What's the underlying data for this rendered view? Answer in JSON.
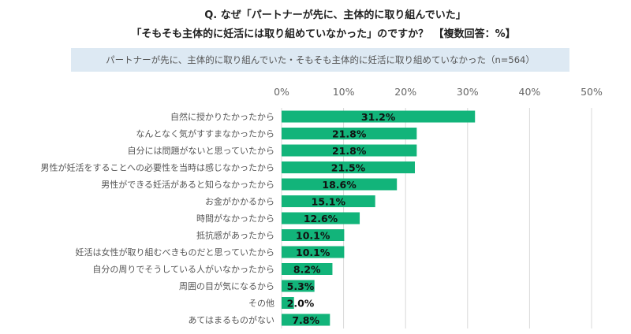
{
  "title_line1": "Q. なぜ「パートナーが先に、主体的に取り組んでいた」",
  "title_line2": "「そもそも主体的に妊活には取り組めていなかった」のですか？　【複数回答：%】",
  "subtitle": "パートナーが先に、主体的に取り組んでいた・そもそも主体的に妊活に取り組めていなかった（n=564）",
  "colors": {
    "bar": "#12b47a",
    "grid": "#d9d9d9",
    "subtitle_bg": "#dde9f3"
  },
  "chart_data": {
    "type": "bar",
    "orientation": "horizontal",
    "title": "Q. なぜ「パートナーが先に、主体的に取り組んでいた」「そもそも主体的に妊活には取り組めていなかった」のですか？ 【複数回答：%】",
    "subtitle": "パートナーが先に、主体的に取り組んでいた・そもそも主体的に妊活に取り組めていなかった（n=564）",
    "xlabel": "",
    "ylabel": "",
    "xlim": [
      0,
      50
    ],
    "x_ticks": [
      0,
      10,
      20,
      30,
      40,
      50
    ],
    "x_tick_labels": [
      "0%",
      "10%",
      "20%",
      "30%",
      "40%",
      "50%"
    ],
    "x_axis_position": "top",
    "grid": true,
    "categories": [
      "自然に授かりたかったから",
      "なんとなく気がすすまなかったから",
      "自分には問題がないと思っていたから",
      "男性が妊活をすることへの必要性を当時は感じなかったから",
      "男性ができる妊活があると知らなかったから",
      "お金がかかるから",
      "時間がなかったから",
      "抵抗感があったから",
      "妊活は女性が取り組むべきものだと思っていたから",
      "自分の周りでそうしている人がいなかったから",
      "周囲の目が気になるから",
      "その他",
      "あてはまるものがない"
    ],
    "values": [
      31.2,
      21.8,
      21.8,
      21.5,
      18.6,
      15.1,
      12.6,
      10.1,
      10.1,
      8.2,
      5.3,
      2.0,
      7.8
    ],
    "value_labels": [
      "31.2%",
      "21.8%",
      "21.8%",
      "21.5%",
      "18.6%",
      "15.1%",
      "12.6%",
      "10.1%",
      "10.1%",
      "8.2%",
      "5.3%",
      "2.0%",
      "7.8%"
    ]
  }
}
